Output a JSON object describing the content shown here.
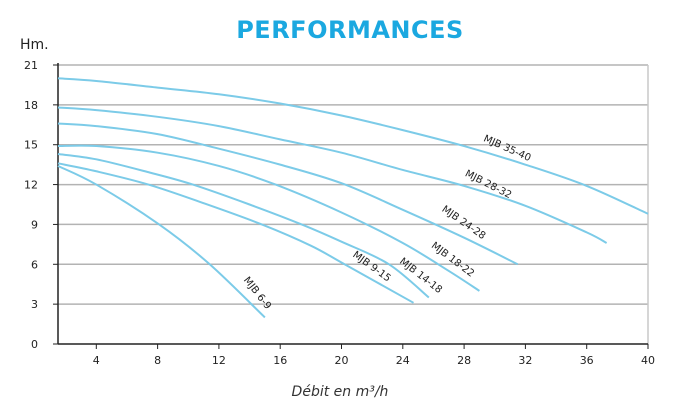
{
  "chart_data": {
    "type": "line",
    "title": "PERFORMANCES",
    "ylabel": "Hm.",
    "xlabel": "Débit en m³/h",
    "xlim": [
      1.5,
      40
    ],
    "ylim": [
      0,
      21
    ],
    "xticks": [
      4,
      8,
      12,
      16,
      20,
      24,
      28,
      32,
      36,
      40
    ],
    "yticks": [
      0,
      3,
      6,
      9,
      12,
      15,
      18,
      21
    ],
    "grid": "horizontal",
    "legend": "inline labels",
    "colors": {
      "title": "#1ba8e0",
      "series": "#7ccbe8",
      "grid": "#b3b3b3",
      "axis": "#222222"
    },
    "series": [
      {
        "name": "MJB 35-40",
        "points": [
          [
            1.5,
            20
          ],
          [
            4,
            19.8
          ],
          [
            8,
            19.3
          ],
          [
            12,
            18.8
          ],
          [
            16,
            18.1
          ],
          [
            20,
            17.2
          ],
          [
            24,
            16.1
          ],
          [
            28,
            14.9
          ],
          [
            32,
            13.5
          ],
          [
            36,
            11.9
          ],
          [
            40,
            9.8
          ]
        ]
      },
      {
        "name": "MJB 28-32",
        "points": [
          [
            1.5,
            17.8
          ],
          [
            4,
            17.6
          ],
          [
            8,
            17.1
          ],
          [
            12,
            16.4
          ],
          [
            16,
            15.4
          ],
          [
            20,
            14.4
          ],
          [
            24,
            13.1
          ],
          [
            28,
            11.9
          ],
          [
            32,
            10.4
          ],
          [
            36,
            8.4
          ],
          [
            37.3,
            7.6
          ]
        ]
      },
      {
        "name": "MJB 24-28",
        "points": [
          [
            1.5,
            16.6
          ],
          [
            4,
            16.4
          ],
          [
            8,
            15.8
          ],
          [
            12,
            14.7
          ],
          [
            16,
            13.5
          ],
          [
            20,
            12.1
          ],
          [
            24,
            10.1
          ],
          [
            28,
            8.0
          ],
          [
            31.5,
            6.0
          ]
        ]
      },
      {
        "name": "MJB 18-22",
        "points": [
          [
            1.5,
            14.9
          ],
          [
            4,
            14.9
          ],
          [
            8,
            14.4
          ],
          [
            12,
            13.4
          ],
          [
            15.7,
            12
          ],
          [
            20,
            9.9
          ],
          [
            24,
            7.6
          ],
          [
            27,
            5.5
          ],
          [
            29,
            4.0
          ]
        ]
      },
      {
        "name": "MJB 14-18",
        "points": [
          [
            1.5,
            14.3
          ],
          [
            4,
            13.9
          ],
          [
            7.5,
            12.9
          ],
          [
            10.3,
            12
          ],
          [
            14,
            10.5
          ],
          [
            17.4,
            9
          ],
          [
            20,
            7.7
          ],
          [
            23.1,
            6
          ],
          [
            25.7,
            3.5
          ]
        ]
      },
      {
        "name": "MJB 9-15",
        "points": [
          [
            1.5,
            13.6
          ],
          [
            4,
            13.0
          ],
          [
            7.4,
            12
          ],
          [
            11,
            10.6
          ],
          [
            14.8,
            9
          ],
          [
            18,
            7.4
          ],
          [
            20.2,
            6
          ],
          [
            24.7,
            3.1
          ]
        ]
      },
      {
        "name": "MJB 6-9",
        "points": [
          [
            1.5,
            13.4
          ],
          [
            4,
            12
          ],
          [
            8.1,
            9
          ],
          [
            11.4,
            6
          ],
          [
            15,
            2.0
          ]
        ]
      }
    ]
  }
}
